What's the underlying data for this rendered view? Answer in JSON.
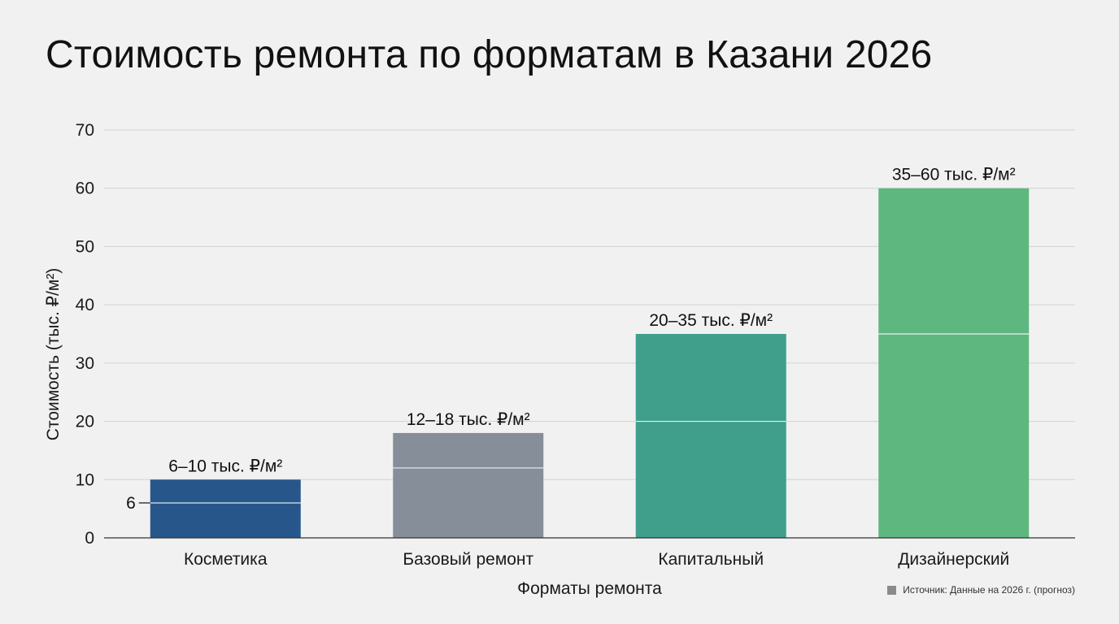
{
  "chart_data": {
    "type": "bar",
    "title": "Стоимость ремонта по форматам в Казани 2026",
    "xlabel": "Форматы ремонта",
    "ylabel": "Стоимость (тыс. ₽/м²)",
    "ylim": [
      0,
      70
    ],
    "yticks": [
      0,
      10,
      20,
      30,
      40,
      50,
      60,
      70
    ],
    "grid": true,
    "categories": [
      "Косметика",
      "Базовый ремонт",
      "Капитальный",
      "Дизайнерский"
    ],
    "ranges": [
      [
        6,
        10
      ],
      [
        12,
        18
      ],
      [
        20,
        35
      ],
      [
        35,
        60
      ]
    ],
    "data_labels": [
      "6–10 тыс. ₽/м²",
      "12–18 тыс. ₽/м²",
      "20–35 тыс. ₽/м²",
      "35–60 тыс. ₽/м²"
    ],
    "colors": [
      "#27578a",
      "#868f99",
      "#3f9f8a",
      "#5eb77f"
    ],
    "lower_marker_label": "6",
    "source": {
      "text": "Источник: Данные на 2026 г. (прогноз)",
      "swatch_color": "#8a8a8a"
    }
  }
}
